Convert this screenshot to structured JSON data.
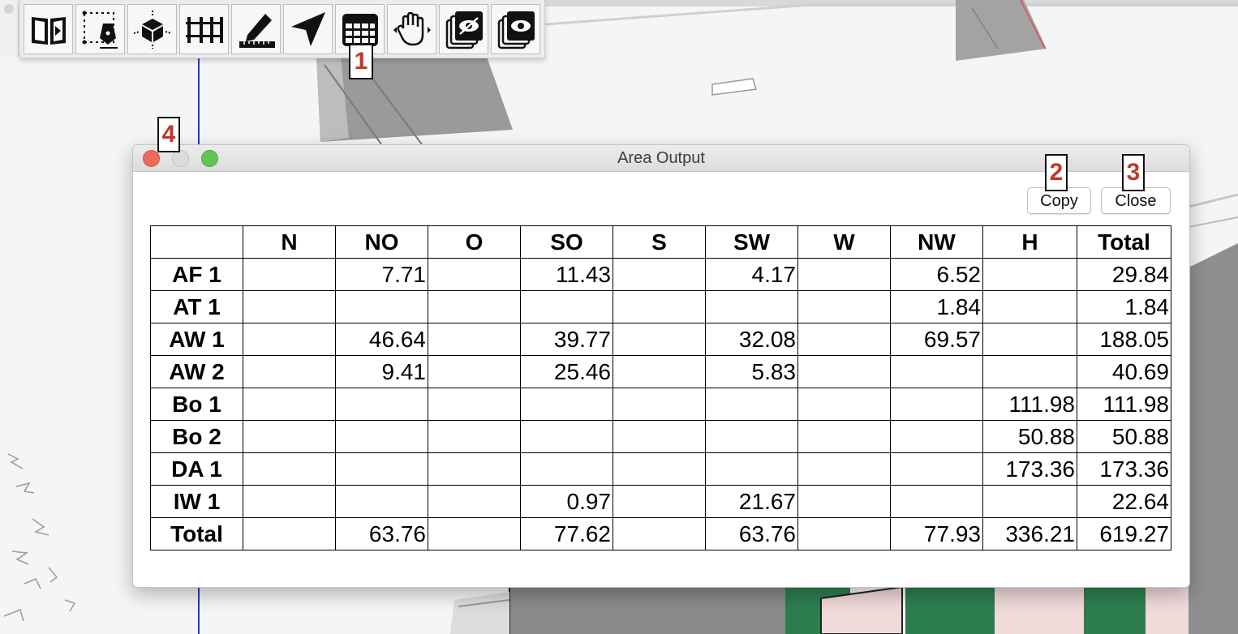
{
  "toolbar": {
    "tools": [
      {
        "icon": "book-play-icon"
      },
      {
        "icon": "dashed-pen-icon"
      },
      {
        "icon": "box-move-icon"
      },
      {
        "icon": "fence-icon"
      },
      {
        "icon": "pencil-ruler-icon"
      },
      {
        "icon": "navigation-arrow-icon"
      },
      {
        "icon": "table-grid-icon"
      },
      {
        "icon": "hand-icon"
      },
      {
        "icon": "layers-hidden-icon"
      },
      {
        "icon": "layers-visible-icon"
      }
    ]
  },
  "markers": [
    "1",
    "2",
    "3",
    "4"
  ],
  "dialog": {
    "title": "Area Output",
    "copy_label": "Copy",
    "close_label": "Close"
  },
  "table": {
    "columns": [
      "",
      "N",
      "NO",
      "O",
      "SO",
      "S",
      "SW",
      "W",
      "NW",
      "H",
      "Total"
    ],
    "rows": [
      [
        "AF 1",
        "",
        "7.71",
        "",
        "11.43",
        "",
        "4.17",
        "",
        "6.52",
        "",
        "29.84"
      ],
      [
        "AT 1",
        "",
        "",
        "",
        "",
        "",
        "",
        "",
        "1.84",
        "",
        "1.84"
      ],
      [
        "AW 1",
        "",
        "46.64",
        "",
        "39.77",
        "",
        "32.08",
        "",
        "69.57",
        "",
        "188.05"
      ],
      [
        "AW 2",
        "",
        "9.41",
        "",
        "25.46",
        "",
        "5.83",
        "",
        "",
        "",
        "40.69"
      ],
      [
        "Bo 1",
        "",
        "",
        "",
        "",
        "",
        "",
        "",
        "",
        "111.98",
        "111.98"
      ],
      [
        "Bo 2",
        "",
        "",
        "",
        "",
        "",
        "",
        "",
        "",
        "50.88",
        "50.88"
      ],
      [
        "DA 1",
        "",
        "",
        "",
        "",
        "",
        "",
        "",
        "",
        "173.36",
        "173.36"
      ],
      [
        "IW 1",
        "",
        "",
        "",
        "0.97",
        "",
        "21.67",
        "",
        "",
        "",
        "22.64"
      ],
      [
        "Total",
        "",
        "63.76",
        "",
        "77.62",
        "",
        "63.76",
        "",
        "77.93",
        "336.21",
        "619.27"
      ]
    ]
  },
  "colors": {
    "close_light": "#ed6a5e",
    "zoom_light": "#61c554",
    "marker_text": "#c0392b",
    "blue_axis": "#1f3fbf",
    "building_green": "#2e7d4f"
  }
}
